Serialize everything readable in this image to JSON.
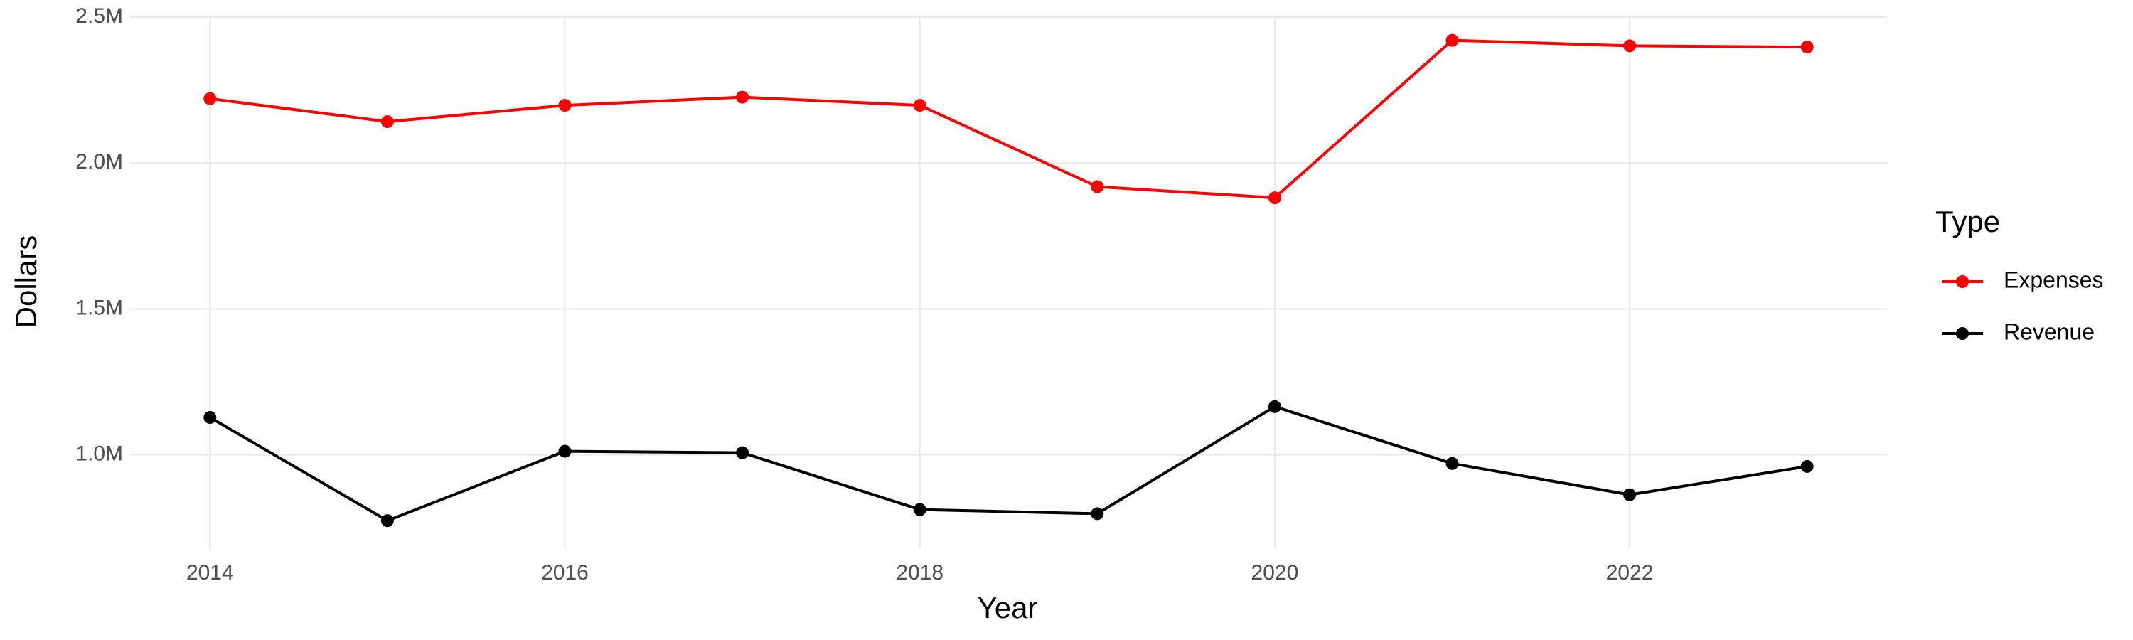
{
  "chart_data": {
    "type": "line",
    "x_label": "Year",
    "y_label": "Dollars",
    "legend_title": "Type",
    "x": [
      2014,
      2015,
      2016,
      2017,
      2018,
      2019,
      2020,
      2021,
      2022,
      2023
    ],
    "series": [
      {
        "name": "Expenses",
        "color": "#ff0000",
        "values": [
          2221000,
          2142000,
          2198000,
          2226000,
          2198000,
          1919000,
          1881000,
          2421000,
          2402000,
          2398000
        ]
      },
      {
        "name": "Revenue",
        "color": "#000000",
        "values": [
          1128000,
          774000,
          1012000,
          1007000,
          812000,
          798000,
          1165000,
          970000,
          863000,
          960000
        ]
      }
    ],
    "xlim": [
      2013.55,
      2023.45
    ],
    "xticks": [
      2014,
      2016,
      2018,
      2020,
      2022
    ],
    "ylim": [
      677000,
      2503000
    ],
    "yticks": [
      {
        "value": 1000000,
        "label": "1.0M"
      },
      {
        "value": 1500000,
        "label": "1.5M"
      },
      {
        "value": 2000000,
        "label": "2.0M"
      },
      {
        "value": 2500000,
        "label": "2.5M"
      }
    ],
    "grid": true,
    "legend": "right"
  }
}
